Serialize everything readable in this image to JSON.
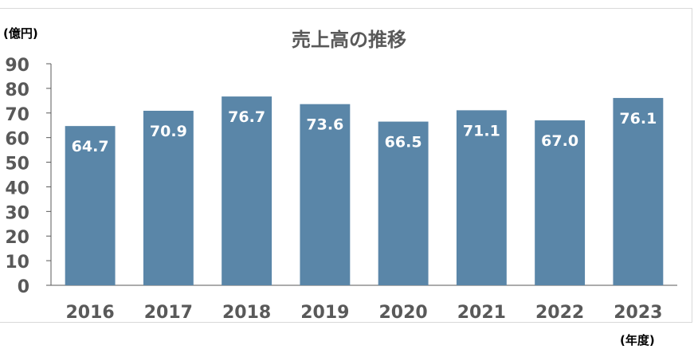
{
  "chart_data": {
    "type": "bar",
    "title": "売上高の推移",
    "ylabel": "(億円)",
    "xlabel": "(年度)",
    "categories": [
      "2016",
      "2017",
      "2018",
      "2019",
      "2020",
      "2021",
      "2022",
      "2023"
    ],
    "values": [
      64.7,
      70.9,
      76.7,
      73.6,
      66.5,
      71.1,
      67.0,
      76.1
    ],
    "value_labels": [
      "64.7",
      "70.9",
      "76.7",
      "73.6",
      "66.5",
      "71.1",
      "67.0",
      "76.1"
    ],
    "ylim": [
      0,
      90
    ],
    "yticks": [
      "0",
      "10",
      "20",
      "30",
      "40",
      "50",
      "60",
      "70",
      "80",
      "90"
    ],
    "grid": false,
    "legend": "none",
    "bar_color": "#5a86a8",
    "label_color": "#ffffff",
    "text_color": "#595959"
  }
}
